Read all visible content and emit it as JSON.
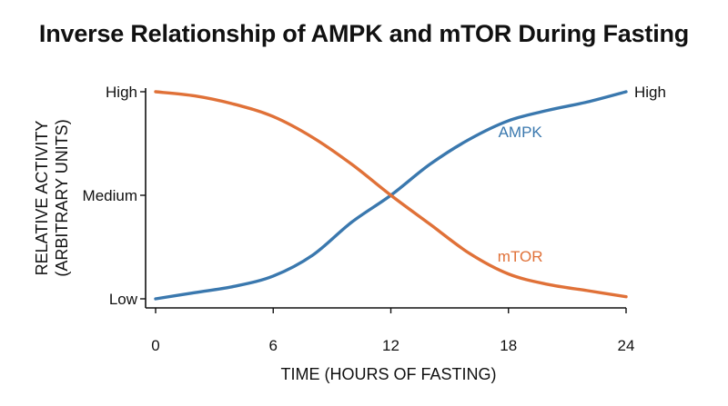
{
  "chart_data": {
    "type": "line",
    "title": "Inverse Relationship of AMPK and mTOR During Fasting",
    "xlabel": "TIME (HOURS OF FASTING)",
    "ylabel_lines": [
      "RELATIVE ACTIVITY",
      "(ARBITRARY UNITS)"
    ],
    "x_ticks": [
      0,
      6,
      12,
      18,
      24
    ],
    "xlim": [
      0,
      24
    ],
    "y_ticks": [
      {
        "value": 0,
        "label": "Low"
      },
      {
        "value": 0.5,
        "label": "Medium"
      },
      {
        "value": 1,
        "label": "High"
      }
    ],
    "ylim": [
      0,
      1
    ],
    "right_annotation": "High",
    "grid": false,
    "series": [
      {
        "name": "AMPK",
        "color": "#3a78ae",
        "x": [
          0,
          2,
          4,
          6,
          8,
          10,
          12,
          14,
          16,
          18,
          20,
          22,
          24
        ],
        "y": [
          0.0,
          0.03,
          0.06,
          0.11,
          0.21,
          0.37,
          0.5,
          0.65,
          0.77,
          0.86,
          0.91,
          0.95,
          1.0
        ]
      },
      {
        "name": "mTOR",
        "color": "#e07138",
        "x": [
          0,
          2,
          4,
          6,
          8,
          10,
          12,
          14,
          16,
          18,
          20,
          22,
          24
        ],
        "y": [
          1.0,
          0.98,
          0.94,
          0.88,
          0.78,
          0.65,
          0.5,
          0.36,
          0.22,
          0.12,
          0.07,
          0.04,
          0.01
        ]
      }
    ]
  }
}
